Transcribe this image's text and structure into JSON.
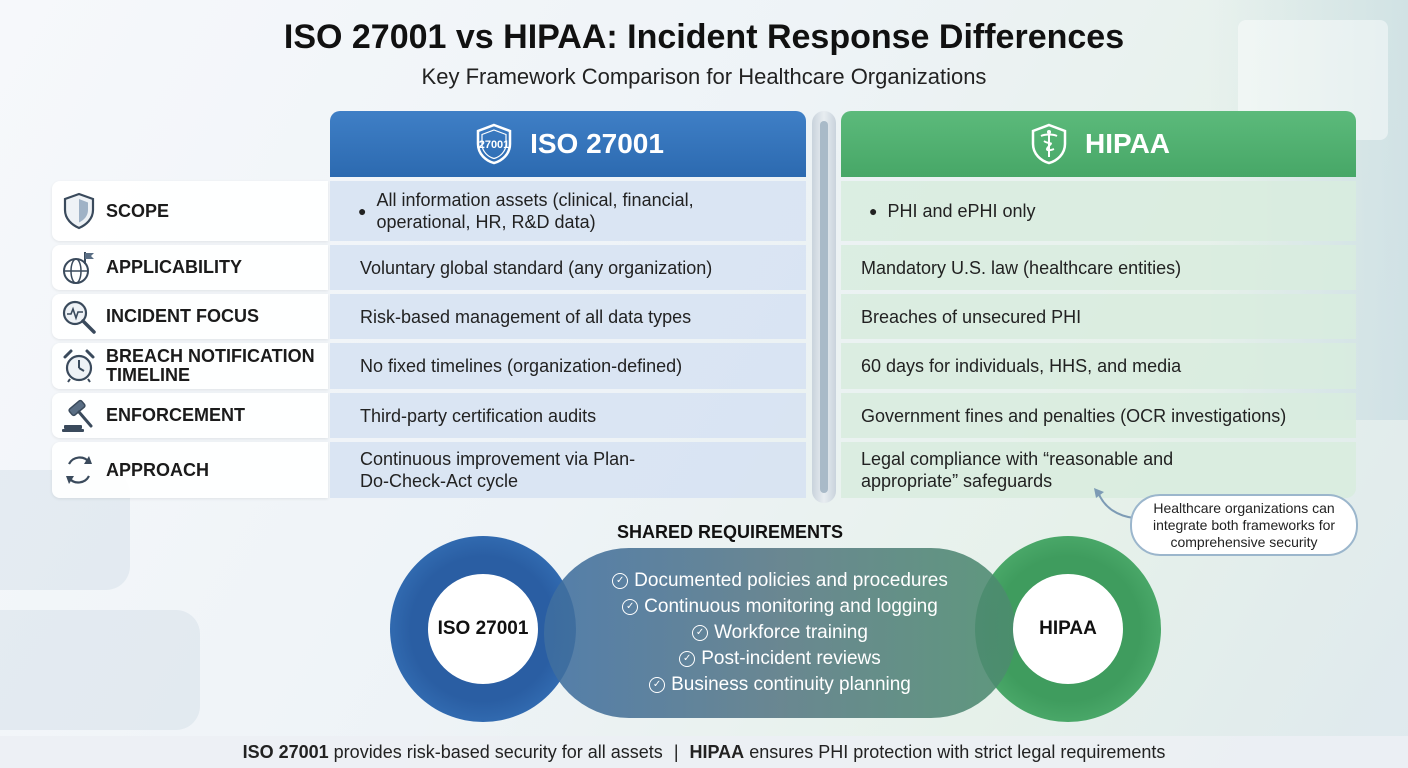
{
  "header": {
    "title": "ISO 27001 vs HIPAA: Incident Response Differences",
    "subtitle": "Key Framework Comparison for Healthcare Organizations"
  },
  "columns": {
    "iso": {
      "label": "ISO 27001",
      "badge": "27001",
      "color": "#3577be"
    },
    "hipaa": {
      "label": "HIPAA",
      "color": "#52b170"
    }
  },
  "rows": [
    {
      "label": "SCOPE",
      "icon": "shield-icon",
      "iso": "All information assets (clinical, financial, operational, HR, R&D data)",
      "hipaa": "PHI and ePHI only"
    },
    {
      "label": "APPLICABILITY",
      "icon": "globe-flag-icon",
      "iso": "Voluntary global standard (any organization)",
      "hipaa": "Mandatory U.S. law (healthcare entities)"
    },
    {
      "label": "INCIDENT FOCUS",
      "icon": "magnifier-pulse-icon",
      "iso": "Risk-based management of all data types",
      "hipaa": "Breaches of unsecured PHI"
    },
    {
      "label": "BREACH NOTIFICATION TIMELINE",
      "icon": "alarm-clock-icon",
      "iso": "No fixed timelines (organization-defined)",
      "hipaa": "60 days for individuals, HHS, and media"
    },
    {
      "label": "ENFORCEMENT",
      "icon": "gavel-icon",
      "iso": "Third-party certification audits",
      "hipaa": "Government fines and penalties (OCR investigations)"
    },
    {
      "label": "APPROACH",
      "icon": "cycle-arrows-icon",
      "iso": "Continuous improvement via Plan-Do-Check-Act cycle",
      "hipaa": "Legal compliance with “reasonable and appropriate” safeguards"
    }
  ],
  "callout": "Healthcare organizations can integrate both frameworks for comprehensive security",
  "shared": {
    "title": "SHARED REQUIREMENTS",
    "left_label": "ISO 27001",
    "right_label": "HIPAA",
    "items": [
      "Documented policies and procedures",
      "Continuous monitoring and logging",
      "Workforce training",
      "Post-incident reviews",
      "Business continuity planning"
    ]
  },
  "footer": {
    "iso_bold": "ISO 27001",
    "iso_text": "provides risk-based security for all assets",
    "separator": "|",
    "hipaa_bold": "HIPAA",
    "hipaa_text": "ensures PHI protection with strict legal requirements"
  }
}
